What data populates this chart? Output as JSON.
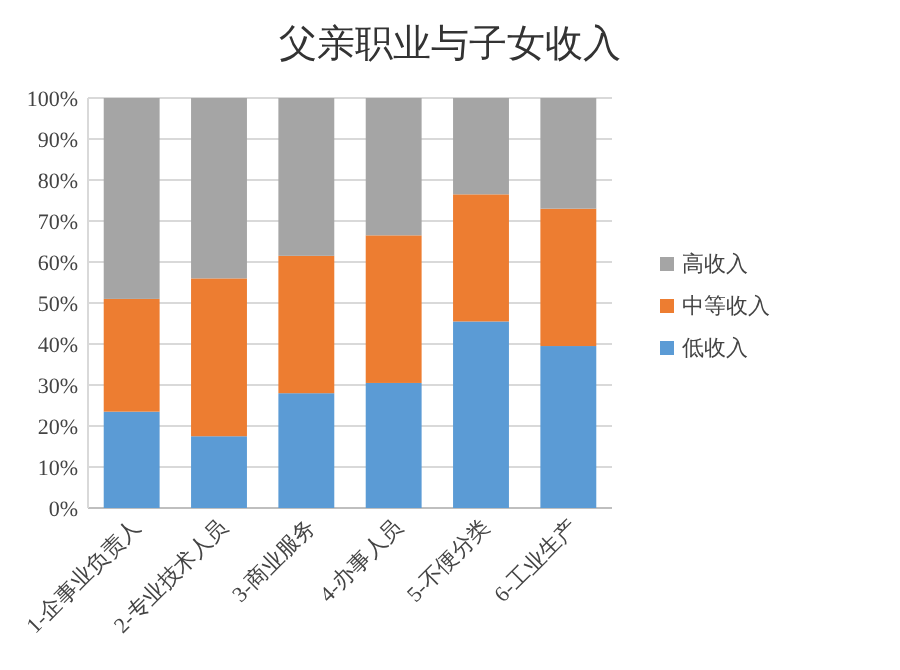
{
  "chart_data": {
    "type": "bar",
    "title": "父亲职业与子女收入",
    "categories": [
      "1-企事业负责人",
      "2-专业技术人员",
      "3-商业服务",
      "4-办事人员",
      "5-不便分类",
      "6-工业生产"
    ],
    "stacked": true,
    "series": [
      {
        "name": "低收入",
        "color": "#5b9bd5",
        "values": [
          23.5,
          17.5,
          28,
          30.5,
          45.5,
          39.5
        ]
      },
      {
        "name": "中等收入",
        "color": "#ed7d31",
        "values": [
          27.5,
          38.5,
          33.5,
          36,
          31,
          33.5
        ]
      },
      {
        "name": "高收入",
        "color": "#a5a5a5",
        "values": [
          49,
          44,
          38.5,
          33.5,
          23.5,
          27
        ]
      }
    ],
    "ylim": [
      0,
      100
    ],
    "yticks": [
      {
        "value": 0,
        "label": "0%"
      },
      {
        "value": 10,
        "label": "10%"
      },
      {
        "value": 20,
        "label": "20%"
      },
      {
        "value": 30,
        "label": "30%"
      },
      {
        "value": 40,
        "label": "40%"
      },
      {
        "value": 50,
        "label": "50%"
      },
      {
        "value": 60,
        "label": "60%"
      },
      {
        "value": 70,
        "label": "70%"
      },
      {
        "value": 80,
        "label": "80%"
      },
      {
        "value": 90,
        "label": "90%"
      },
      {
        "value": 100,
        "label": "100%"
      }
    ],
    "grid": "y",
    "legend": "right"
  }
}
